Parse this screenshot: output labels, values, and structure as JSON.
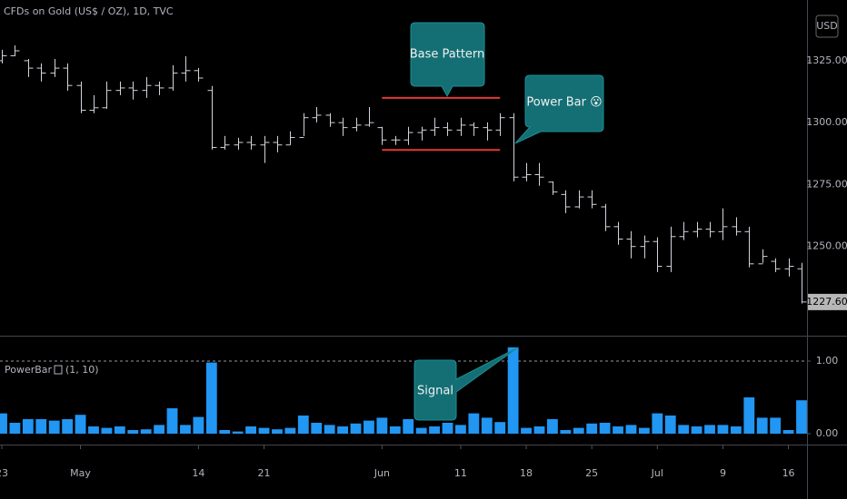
{
  "chart_data": [
    {
      "type": "ohlc",
      "title": "CFDs on Gold (US$ / OZ), 1D, TVC",
      "y_axis_label": "USD",
      "color": "#d1d4dc",
      "open": [
        1325,
        1327,
        1325,
        1322,
        1320,
        1322,
        1315,
        1305,
        1306,
        1313,
        1314,
        1313,
        1315,
        1314,
        1320,
        1321,
        1313,
        1290,
        1291,
        1292,
        1291,
        1292,
        1291,
        1294,
        1302,
        1303,
        1300,
        1298,
        1299,
        1298,
        1293,
        1293,
        1296,
        1297,
        1298,
        1297,
        1299,
        1298,
        1297,
        1302,
        1278,
        1279,
        1276,
        1271,
        1266,
        1270,
        1266,
        1258,
        1253,
        1250,
        1252,
        1242,
        1254,
        1256,
        1257,
        1256,
        1258,
        1256,
        1243,
        1244,
        1241,
        1241
      ],
      "high": [
        1329.4,
        1331.2,
        1325.7,
        1323.9,
        1325.7,
        1323.9,
        1316.6,
        1311.1,
        1316.6,
        1316.6,
        1316.6,
        1318.4,
        1316.6,
        1323.2,
        1326.8,
        1322.1,
        1314.8,
        1294.6,
        1293.9,
        1294.6,
        1294.6,
        1294.6,
        1296.5,
        1303.8,
        1306.3,
        1303.8,
        1302.0,
        1302.0,
        1306.3,
        1298.3,
        1294.6,
        1298.3,
        1298.3,
        1302.0,
        1300.1,
        1302.0,
        1300.1,
        1300.1,
        1303.8,
        1303.8,
        1283.7,
        1283.7,
        1276.3,
        1272.7,
        1272.7,
        1272.7,
        1267.2,
        1259.9,
        1256.2,
        1254.4,
        1253.7,
        1258.0,
        1259.9,
        1259.9,
        1259.9,
        1265.4,
        1261.8,
        1258.0,
        1248.9,
        1245.2,
        1245.2,
        1243.4
      ],
      "low": [
        1323.9,
        1326.8,
        1318.4,
        1316.6,
        1318.4,
        1312.9,
        1303.8,
        1303.8,
        1305.6,
        1311.1,
        1309.3,
        1310.0,
        1311.1,
        1312.9,
        1316.6,
        1316.6,
        1289.1,
        1289.1,
        1289.1,
        1289.1,
        1283.7,
        1288.0,
        1291.0,
        1294.6,
        1300.1,
        1298.3,
        1294.6,
        1296.5,
        1298.3,
        1291.0,
        1291.0,
        1291.0,
        1292.8,
        1294.6,
        1294.6,
        1294.6,
        1294.6,
        1292.8,
        1294.6,
        1276.3,
        1276.3,
        1274.5,
        1270.8,
        1263.5,
        1265.4,
        1265.4,
        1256.2,
        1250.7,
        1245.2,
        1245.2,
        1239.7,
        1239.7,
        1252.6,
        1253.7,
        1253.7,
        1252.6,
        1254.4,
        1241.6,
        1243.4,
        1239.7,
        1237.9,
        1227.0
      ],
      "close": [
        1327,
        1329,
        1322,
        1320,
        1322,
        1315,
        1305,
        1306,
        1313,
        1314,
        1313,
        1315,
        1314,
        1320,
        1321,
        1318,
        1290,
        1291,
        1292,
        1291,
        1292,
        1291,
        1294,
        1302,
        1303,
        1300,
        1298,
        1299,
        1300,
        1293,
        1293,
        1296,
        1297,
        1298,
        1297,
        1299,
        1298,
        1297,
        1302,
        1278,
        1279,
        1278,
        1272,
        1266,
        1270,
        1267,
        1258,
        1253,
        1250,
        1252,
        1242,
        1254,
        1256,
        1257,
        1256,
        1258,
        1256,
        1243,
        1246,
        1241,
        1242,
        1227.6
      ],
      "last_value_label": "1227.60",
      "ylim": [
        1214,
        1349.5
      ],
      "yticks": [
        {
          "value": 1250,
          "label": "1250.00"
        },
        {
          "value": 1275,
          "label": "1275.00"
        },
        {
          "value": 1300,
          "label": "1300.00"
        },
        {
          "value": 1325,
          "label": "1325.00"
        }
      ],
      "base_pattern": {
        "label": "Base Pattern",
        "high": 1310,
        "low": 1289,
        "from": 29,
        "to": 38,
        "color": "#e53935"
      },
      "power_bar_label": "Power Bar 😮"
    },
    {
      "type": "bar",
      "title": "PowerBar",
      "subtitle": "(1, 10)",
      "color": "#2196f3",
      "categories": [
        "23",
        null,
        null,
        null,
        null,
        null,
        "May",
        null,
        null,
        null,
        null,
        null,
        null,
        null,
        null,
        "14",
        null,
        null,
        null,
        null,
        "21",
        null,
        null,
        null,
        null,
        null,
        null,
        null,
        null,
        "Jun",
        null,
        null,
        null,
        null,
        null,
        "11",
        null,
        null,
        null,
        null,
        "18",
        null,
        null,
        null,
        null,
        "25",
        null,
        null,
        null,
        null,
        "Jul",
        null,
        null,
        null,
        null,
        "9",
        null,
        null,
        null,
        null,
        "16",
        null
      ],
      "values": [
        0.28,
        0.15,
        0.2,
        0.2,
        0.18,
        0.2,
        0.26,
        0.1,
        0.08,
        0.1,
        0.05,
        0.06,
        0.12,
        0.35,
        0.12,
        0.23,
        0.98,
        0.05,
        0.03,
        0.1,
        0.08,
        0.06,
        0.08,
        0.25,
        0.15,
        0.12,
        0.1,
        0.14,
        0.18,
        0.22,
        0.1,
        0.2,
        0.08,
        0.1,
        0.15,
        0.12,
        0.28,
        0.22,
        0.16,
        1.19,
        0.08,
        0.1,
        0.2,
        0.05,
        0.08,
        0.14,
        0.15,
        0.1,
        0.12,
        0.08,
        0.28,
        0.25,
        0.12,
        0.1,
        0.12,
        0.12,
        0.1,
        0.5,
        0.22,
        0.22,
        0.05,
        0.46
      ],
      "ylim": [
        -0.15,
        1.35
      ],
      "yticks": [
        {
          "value": 0,
          "label": "0.00"
        },
        {
          "value": 1,
          "label": "1.00"
        }
      ],
      "level": 1,
      "signal_label": "Signal"
    }
  ]
}
